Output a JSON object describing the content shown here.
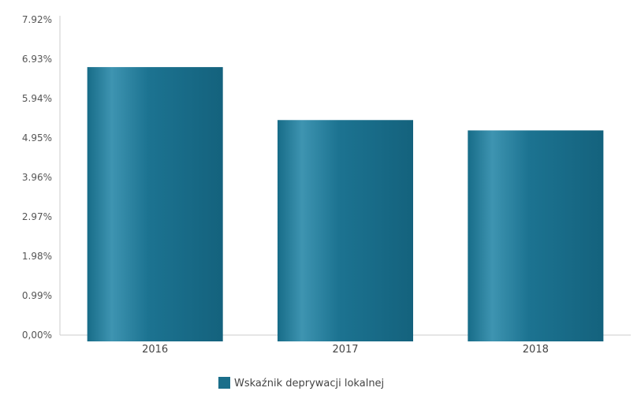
{
  "chart_data": {
    "type": "bar",
    "categories": [
      "2016",
      "2017",
      "2018"
    ],
    "series": [
      {
        "name": "Wskaźnik deprywacji lokalnej",
        "values": [
          6.73,
          5.4,
          5.14
        ]
      }
    ],
    "ylim": [
      0,
      7.92
    ],
    "yticks": [
      "0,00%",
      "0.99%",
      "1.98%",
      "2.97%",
      "3.96%",
      "4.95%",
      "5.94%",
      "6.93%",
      "7.92%"
    ],
    "grid": false,
    "legend": {
      "position": "bottom",
      "label": "Wskaźnik deprywacji lokalnej"
    },
    "colors": {
      "bar": "#1a6e8a",
      "bar_highlight": "#3a90ad",
      "axis": "#cccccc"
    }
  }
}
